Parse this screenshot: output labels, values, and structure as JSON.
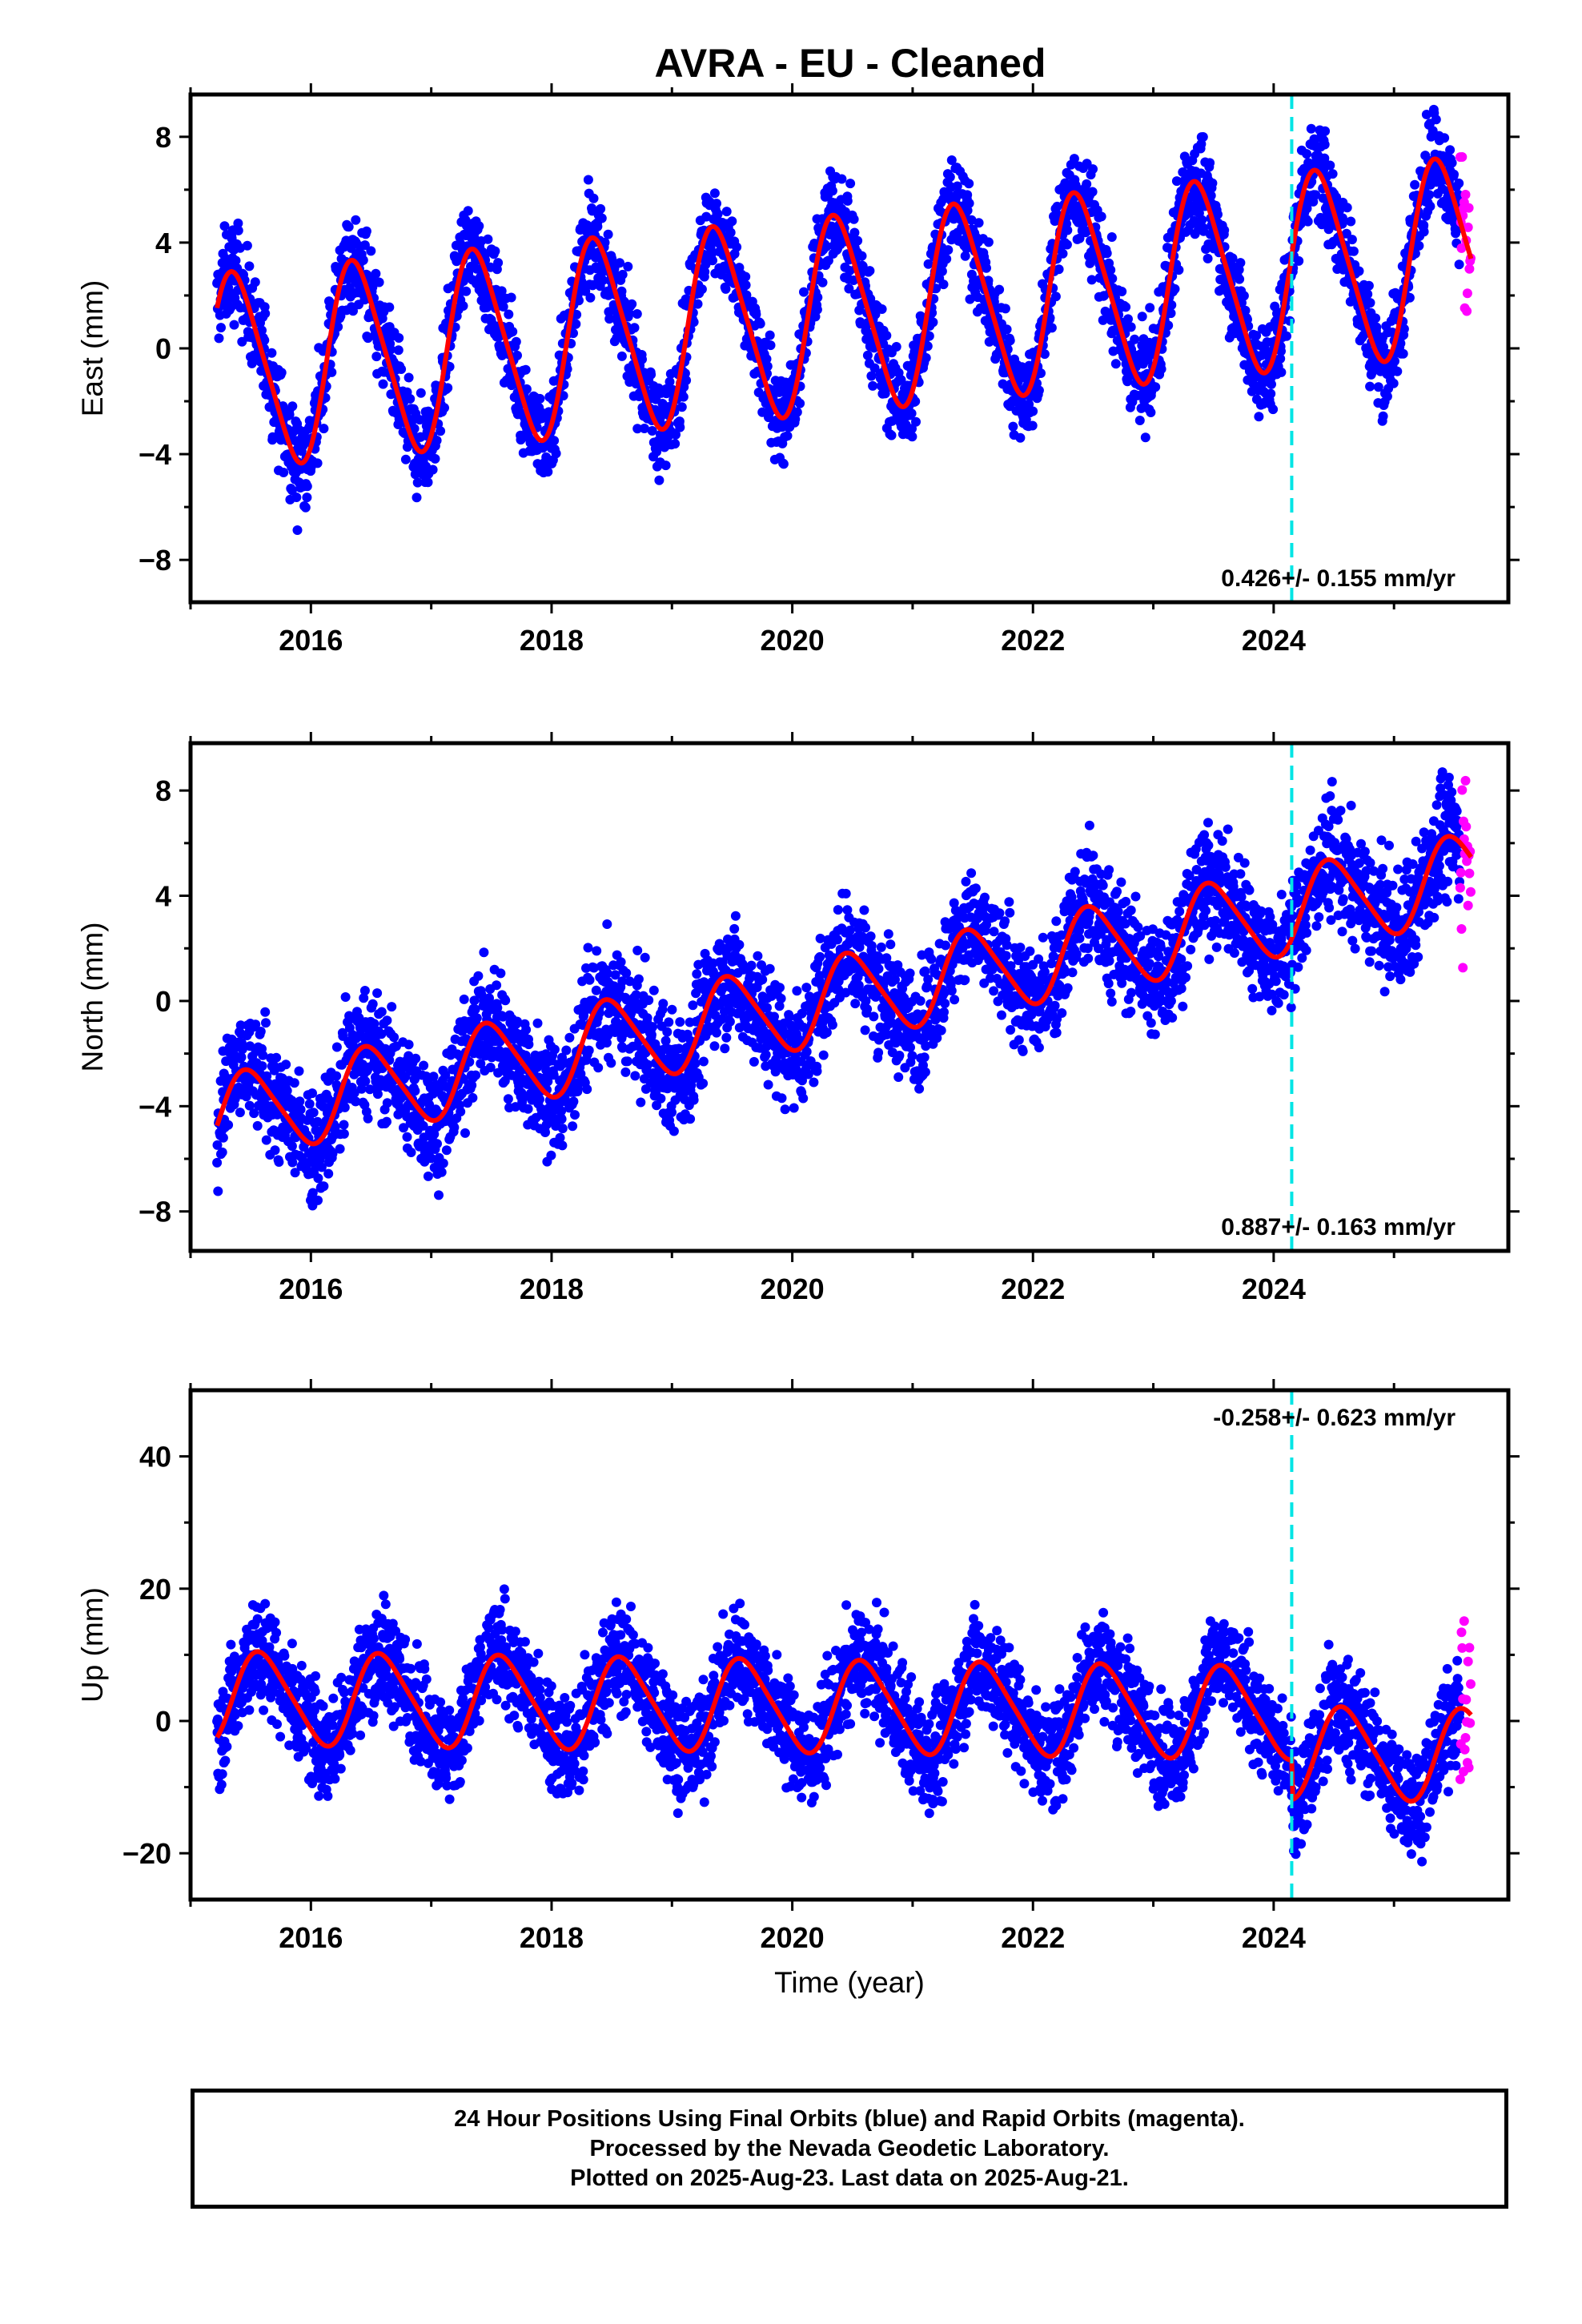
{
  "colors": {
    "final": "#0000ff",
    "rapid": "#ff00ff",
    "model": "#ff0000",
    "marker": "#00e5e5"
  },
  "chart_data": {
    "type": "scatter",
    "title": "AVRA  - EU - Cleaned",
    "xlabel": "Time (year)",
    "x_range": [
      2015.0,
      2025.95
    ],
    "x_ticks": [
      "2016",
      "2018",
      "2020",
      "2022",
      "2024"
    ],
    "marker_epoch": 2024.15,
    "final_span": [
      2015.22,
      2025.55
    ],
    "rapid_span": [
      2025.55,
      2025.64
    ],
    "panels": [
      {
        "ylabel": "East (mm)",
        "ylim": [
          -9.6,
          9.6
        ],
        "yticks": [
          "8",
          "4",
          "0",
          "−4",
          "−8"
        ],
        "rate": "0.426+/- 0.155 mm/yr",
        "model": {
          "offset": -0.9,
          "trend": 0.426,
          "annual_amp": 3.6,
          "phase": 0.13,
          "scatter": 0.9,
          "step": 0.0
        }
      },
      {
        "ylabel": "North (mm)",
        "ylim": [
          -9.5,
          9.8
        ],
        "yticks": [
          "8",
          "4",
          "0",
          "−4",
          "−8"
        ],
        "rate": "0.887+/- 0.163 mm/yr",
        "model": {
          "offset": -4.5,
          "trend": 0.887,
          "annual_amp": 1.6,
          "phase": 0.24,
          "scatter": 1.1,
          "step": 0.0
        }
      },
      {
        "ylabel": "Up (mm)",
        "ylim": [
          -27,
          50
        ],
        "yticks": [
          "40",
          "20",
          "0",
          "−20"
        ],
        "rate": "-0.258+/- 0.623 mm/yr",
        "model": {
          "offset": 3.5,
          "trend": -0.258,
          "annual_amp": 6.8,
          "phase": 0.35,
          "scatter": 4.0,
          "step": -6.0
        }
      }
    ]
  },
  "footer": {
    "line1": "24 Hour Positions Using Final Orbits (blue) and Rapid Orbits (magenta).",
    "line2": "Processed by the Nevada Geodetic Laboratory.",
    "line3": "Plotted on 2025-Aug-23. Last data on 2025-Aug-21."
  }
}
